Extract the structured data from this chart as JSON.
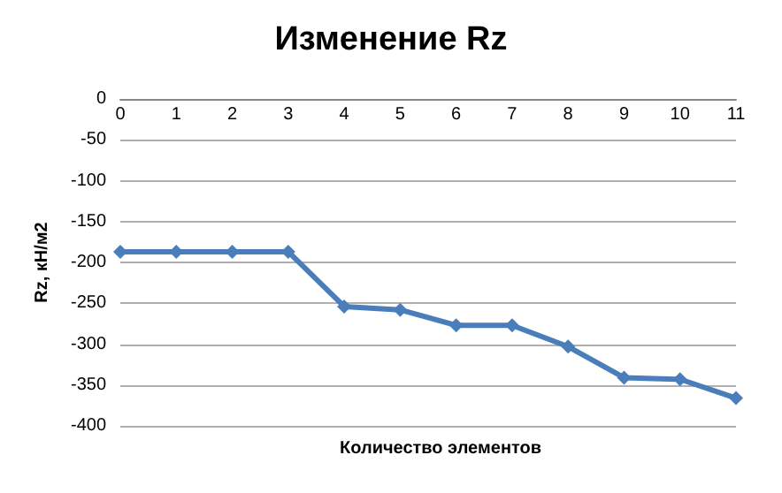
{
  "chart_data": {
    "type": "line",
    "title": "Изменение Rz",
    "xlabel": "Количество элементов",
    "ylabel": "Rz, кН/м2",
    "categories": [
      "0",
      "1",
      "2",
      "3",
      "4",
      "5",
      "6",
      "7",
      "8",
      "9",
      "10",
      "11"
    ],
    "series": [
      {
        "color": "#4a7ebb",
        "values": [
          -187,
          -187,
          -187,
          -187,
          -254,
          -258,
          -277,
          -277,
          -303,
          -341,
          -343,
          -366
        ]
      }
    ],
    "ylim": [
      -400,
      0
    ],
    "yticks": [
      -400,
      -350,
      -300,
      -250,
      -200,
      -150,
      -100,
      -50,
      0
    ],
    "grid": "y",
    "marker": "diamond",
    "line_style": "solid"
  }
}
